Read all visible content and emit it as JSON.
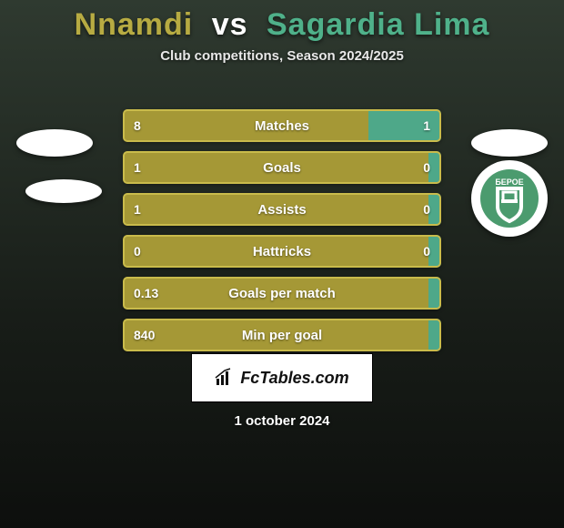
{
  "header": {
    "player1": "Nnamdi",
    "vs": "vs",
    "player2": "Sagardia Lima",
    "player1_color": "#b7ab42",
    "player2_color": "#4fb18a",
    "vs_color": "#ffffff",
    "subtitle": "Club competitions, Season 2024/2025"
  },
  "colors": {
    "left_fill": "#a59836",
    "right_fill": "#4ea889",
    "border": "#c9bb4b",
    "right_border": "#5bc19c"
  },
  "stats": [
    {
      "label": "Matches",
      "left_val": "8",
      "right_val": "1",
      "left_pct": 77,
      "right_pct": 23
    },
    {
      "label": "Goals",
      "left_val": "1",
      "right_val": "0",
      "left_pct": 96,
      "right_pct": 4
    },
    {
      "label": "Assists",
      "left_val": "1",
      "right_val": "0",
      "left_pct": 96,
      "right_pct": 4
    },
    {
      "label": "Hattricks",
      "left_val": "0",
      "right_val": "0",
      "left_pct": 96,
      "right_pct": 4
    },
    {
      "label": "Goals per match",
      "left_val": "0.13",
      "right_val": "",
      "left_pct": 96,
      "right_pct": 4
    },
    {
      "label": "Min per goal",
      "left_val": "840",
      "right_val": "",
      "left_pct": 96,
      "right_pct": 4
    }
  ],
  "badges": {
    "right_logo_text": "БЕРОЕ",
    "right_logo_bg": "#4b9b6e",
    "right_logo_fg": "#ffffff"
  },
  "footer": {
    "brand": "FcTables.com",
    "date": "1 october 2024"
  }
}
